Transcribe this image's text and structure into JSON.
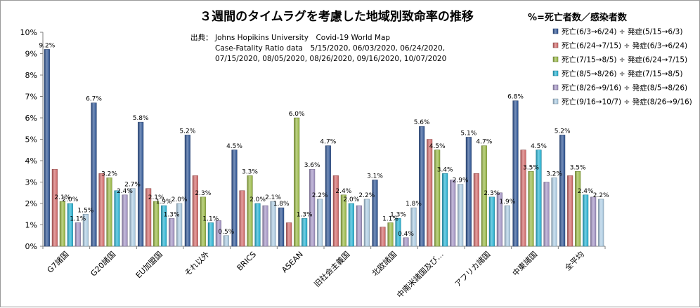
{
  "chart_data": {
    "type": "bar",
    "title": "３週間のタイムラグを考慮した地域別致命率の推移",
    "note": "%=死亡者数／感染者数",
    "source": {
      "label": "出典：",
      "lines": [
        "Johns Hopikins University　Covid-19 World Map",
        "Case-Fatality Ratio data　5/15/2020, 06/03/2020, 06/24/2020,",
        "07/15/2020, 08/05/2020, 08/26/2020, 09/16/2020, 10/07/2020"
      ]
    },
    "ylim": [
      0,
      10
    ],
    "yticks": [
      "0%",
      "1%",
      "2%",
      "3%",
      "4%",
      "5%",
      "6%",
      "7%",
      "8%",
      "9%",
      "10%"
    ],
    "categories": [
      "G7諸国",
      "G20諸国",
      "EU加盟国",
      "それ以外",
      "BRICS",
      "ASEAN",
      "旧社会主義国",
      "北欧諸国",
      "中南米諸国及び…",
      "アフリカ諸国",
      "中東諸国",
      "全平均"
    ],
    "series": [
      {
        "name": "死亡(6/3→6/24) ÷ 発症(5/15→6/3)",
        "color": "#2E5597",
        "values": [
          9.2,
          6.7,
          5.8,
          5.2,
          4.5,
          1.8,
          4.7,
          3.1,
          5.6,
          5.1,
          6.8,
          5.2
        ]
      },
      {
        "name": "死亡(6/24→7/15) ÷ 発症(6/3→6/24)",
        "color": "#D56B6B",
        "values": [
          3.6,
          3.4,
          2.7,
          3.3,
          2.6,
          1.1,
          3.3,
          0.9,
          5.0,
          3.4,
          4.5,
          3.3
        ]
      },
      {
        "name": "死亡(7/15→8/5) ÷ 発症(6/24→7/15)",
        "color": "#9BBB45",
        "values": [
          2.1,
          3.2,
          2.1,
          2.3,
          3.3,
          6.0,
          2.4,
          1.1,
          4.5,
          4.7,
          3.5,
          3.5
        ]
      },
      {
        "name": "死亡(8/5→8/26) ÷ 発症(7/15→8/5)",
        "color": "#27B5D6",
        "values": [
          2.0,
          2.6,
          1.9,
          1.1,
          2.0,
          1.3,
          2.0,
          1.3,
          3.4,
          2.3,
          4.5,
          2.4
        ]
      },
      {
        "name": "死亡(8/26→9/16) ÷ 発症(8/5→8/26)",
        "color": "#A697C8",
        "values": [
          1.1,
          2.4,
          1.3,
          1.2,
          1.9,
          3.6,
          1.9,
          0.4,
          3.1,
          2.5,
          3.0,
          2.3
        ]
      },
      {
        "name": "死亡(9/16→10/7) ÷ 発症(8/26→9/16)",
        "color": "#AFCFE6",
        "values": [
          1.5,
          2.7,
          2.0,
          0.5,
          2.1,
          2.2,
          2.2,
          1.8,
          2.9,
          1.9,
          3.2,
          2.2
        ]
      }
    ],
    "data_labels": [
      [
        "9.2%",
        "6.7%",
        "5.8%",
        "5.2%",
        "4.5%",
        "1.8%",
        "4.7%",
        "3.1%",
        "5.6%",
        "5.1%",
        "6.8%",
        "5.2%"
      ],
      [
        "",
        "",
        "",
        "",
        "",
        "",
        "",
        "",
        "",
        "",
        "",
        ""
      ],
      [
        "2.1%",
        "3.2%",
        "2.1%",
        "2.3%",
        "3.3%",
        "6.0%",
        "2.4%",
        "1.1%",
        "4.5%",
        "4.7%",
        "3.5%",
        "3.5%"
      ],
      [
        "2.0%",
        "",
        "1.9%",
        "1.1%",
        "2.0%",
        "1.3%",
        "2.0%",
        "1.3%",
        "3.4%",
        "2.3%",
        "4.5%",
        "2.4%"
      ],
      [
        "1.1%",
        "2.4%",
        "1.3%",
        "",
        "",
        "3.6%",
        "",
        "0.4%",
        "",
        "",
        "",
        ""
      ],
      [
        "1.5%",
        "2.7%",
        "2.0%",
        "0.5%",
        "2.1%",
        "2.2%",
        "2.2%",
        "1.8%",
        "2.9%",
        "1.9%",
        "3.2%",
        "2.2%"
      ]
    ],
    "legend_position": "top-right",
    "grid": false
  }
}
